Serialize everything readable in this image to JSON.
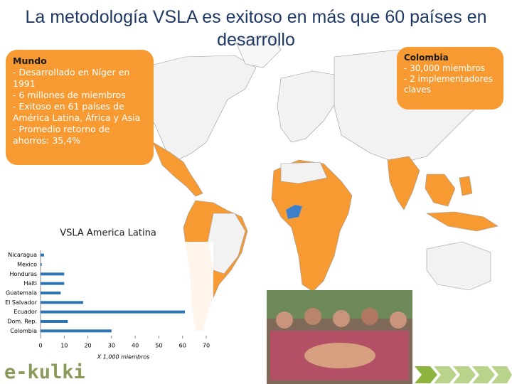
{
  "title": "La metodología VSLA es exitoso en más que 60 países en desarrollo",
  "world": {
    "heading": "Mundo",
    "lines": [
      "- Desarrollado en Níger en 1991",
      "- 6 millones de miembros",
      "- Exitoso en 61 países de América Latina, África y Asia",
      "- Promedio retorno de ahorros: 35,4%"
    ]
  },
  "colombia": {
    "heading": "Colombia",
    "lines": [
      "- 30,000 miembros",
      "- 2 implementadores claves"
    ]
  },
  "logo": "e-kulki",
  "chart_data": {
    "type": "hbar",
    "title": "VSLA America Latina",
    "x_label": "X 1,000 miembros",
    "categories": [
      "Nicaragua",
      "Mexico",
      "Honduras",
      "Haiti",
      "Guatemala",
      "El Salvador",
      "Ecuador",
      "Dom. Rep.",
      "Colombia"
    ],
    "values": [
      1.5,
      0.5,
      10,
      10,
      8.5,
      18,
      61,
      11.5,
      30
    ],
    "color": "#2e75b6",
    "xlim": [
      0,
      70
    ],
    "xticks": [
      0,
      10,
      20,
      30,
      40,
      50,
      60,
      70
    ]
  }
}
